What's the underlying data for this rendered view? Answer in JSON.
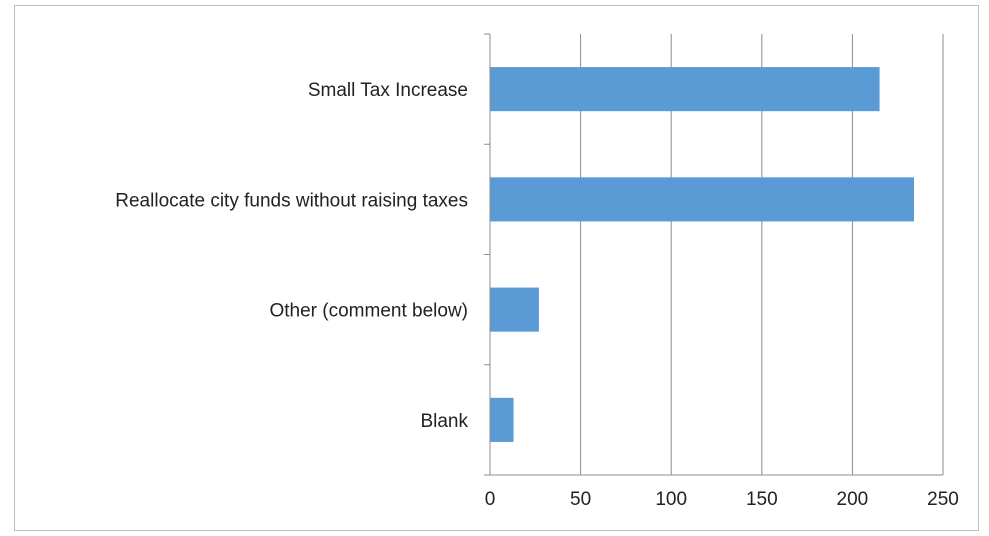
{
  "chart_data": {
    "type": "bar",
    "orientation": "horizontal",
    "title": "",
    "xlabel": "",
    "ylabel": "",
    "categories": [
      "Small Tax Increase",
      "Reallocate city funds without raising taxes",
      "Other (comment below)",
      "Blank"
    ],
    "values": [
      215,
      234,
      27,
      13
    ],
    "xlim": [
      0,
      250
    ],
    "xticks": [
      "0",
      "50",
      "100",
      "150",
      "200",
      "250"
    ],
    "xticks_values": [
      0,
      50,
      100,
      150,
      200,
      250
    ],
    "grid": "vertical",
    "legend": "none",
    "bar_color": "#5b9bd5",
    "grid_color": "#8c8c8c"
  }
}
